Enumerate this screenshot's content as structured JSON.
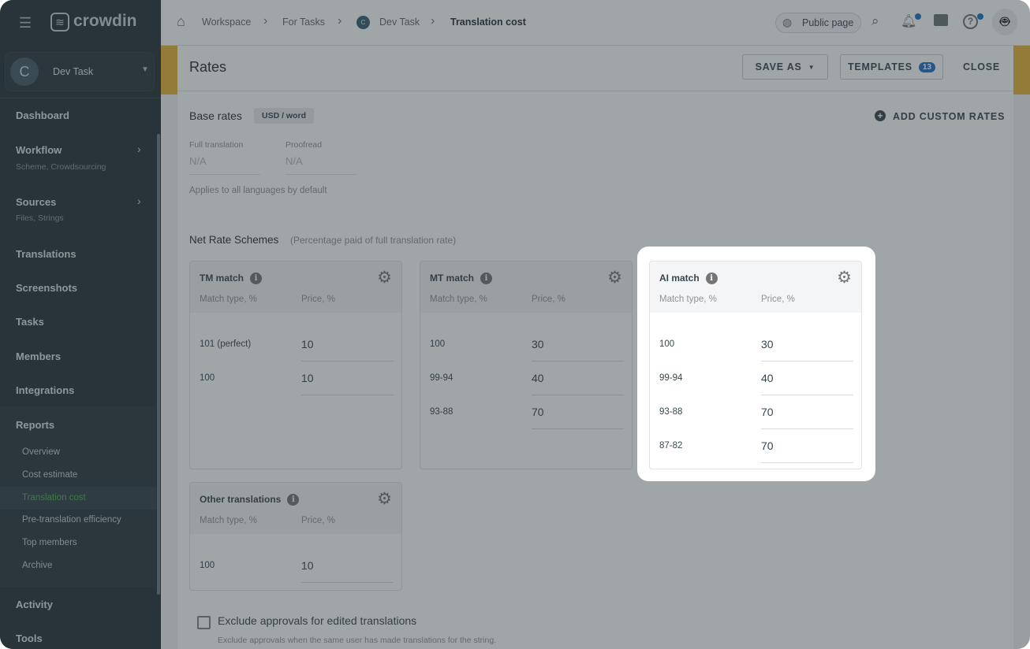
{
  "sidebar": {
    "logo": "crowdin",
    "project": {
      "avatar": "C",
      "name": "Dev Task"
    },
    "items": [
      {
        "label": "Dashboard"
      },
      {
        "label": "Workflow",
        "sub": "Scheme, Crowdsourcing"
      },
      {
        "label": "Sources",
        "sub": "Files, Strings"
      },
      {
        "label": "Translations"
      },
      {
        "label": "Screenshots"
      },
      {
        "label": "Tasks"
      },
      {
        "label": "Members"
      },
      {
        "label": "Integrations"
      },
      {
        "label": "Reports"
      },
      {
        "label": "Activity"
      },
      {
        "label": "Tools"
      }
    ],
    "reports": [
      "Overview",
      "Cost estimate",
      "Translation cost",
      "Pre-translation efficiency",
      "Top members",
      "Archive"
    ],
    "active_report": "Translation cost",
    "active_color": "#4caf50"
  },
  "breadcrumb": {
    "items": [
      "Workspace",
      "For Tasks",
      "Dev Task",
      "Translation cost"
    ],
    "project_avatar": "C"
  },
  "topbar": {
    "public_page": "Public page"
  },
  "header": {
    "title": "Rates",
    "save_as": "SAVE AS",
    "templates": "TEMPLATES",
    "templates_count": "13",
    "close": "CLOSE"
  },
  "base_rates": {
    "title": "Base rates",
    "unit": "USD / word",
    "add_custom": "ADD CUSTOM RATES",
    "fields": [
      {
        "label": "Full translation",
        "value": "N/A"
      },
      {
        "label": "Proofread",
        "value": "N/A"
      }
    ],
    "note": "Applies to all languages by default"
  },
  "schemes": {
    "title": "Net Rate Schemes",
    "subtitle": "(Percentage paid of full translation rate)",
    "col_match": "Match type, %",
    "col_price": "Price, %",
    "cards": [
      {
        "title": "TM match",
        "rows": [
          [
            "101 (perfect)",
            "10"
          ],
          [
            "100",
            "10"
          ]
        ]
      },
      {
        "title": "MT match",
        "rows": [
          [
            "100",
            "30"
          ],
          [
            "99-94",
            "40"
          ],
          [
            "93-88",
            "70"
          ]
        ]
      },
      {
        "title": "AI match",
        "rows": [
          [
            "100",
            "30"
          ],
          [
            "99-94",
            "40"
          ],
          [
            "93-88",
            "70"
          ],
          [
            "87-82",
            "70"
          ]
        ]
      },
      {
        "title": "Other translations",
        "rows": [
          [
            "100",
            "10"
          ]
        ]
      }
    ]
  },
  "exclude": {
    "label": "Exclude approvals for edited translations",
    "hint": "Exclude approvals when the same user has made translations for the string.",
    "checked": false
  },
  "colors": {
    "accent": "#e8b43a",
    "badge": "#1e6fc8",
    "sidebar": "#263238"
  }
}
